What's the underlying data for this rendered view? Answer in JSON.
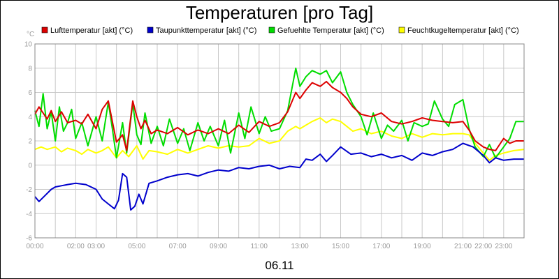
{
  "chart_data": {
    "type": "line",
    "title": "Temperaturen [pro Tag]",
    "date_label": "06.11",
    "y_unit": "°C",
    "ylim": [
      -6,
      10
    ],
    "y_ticks": [
      -6,
      -4,
      -2,
      0,
      2,
      4,
      6,
      8,
      10
    ],
    "xlim": [
      0,
      24
    ],
    "x_ticks": [
      {
        "h": 0,
        "label": "00:00"
      },
      {
        "h": 2,
        "label": "02:00"
      },
      {
        "h": 3,
        "label": "03:00"
      },
      {
        "h": 5,
        "label": "05:00"
      },
      {
        "h": 7,
        "label": "07:00"
      },
      {
        "h": 9,
        "label": "09:00"
      },
      {
        "h": 11,
        "label": "11:00"
      },
      {
        "h": 13,
        "label": "13:00"
      },
      {
        "h": 15,
        "label": "15:00"
      },
      {
        "h": 17,
        "label": "17:00"
      },
      {
        "h": 19,
        "label": "19:00"
      },
      {
        "h": 21,
        "label": "21:00"
      },
      {
        "h": 22,
        "label": "22:00"
      },
      {
        "h": 23,
        "label": "23:00"
      }
    ],
    "grid": true,
    "legend_position": "top",
    "series": [
      {
        "name": "Lufttemperatur [akt] (°C)",
        "color": "#dd0000",
        "x": [
          0,
          0.2,
          0.4,
          0.6,
          0.8,
          1,
          1.3,
          1.6,
          2,
          2.3,
          2.6,
          3,
          3.3,
          3.6,
          3.8,
          4,
          4.3,
          4.5,
          4.8,
          5,
          5.2,
          5.4,
          5.7,
          6,
          6.5,
          7,
          7.5,
          8,
          8.5,
          9,
          9.5,
          10,
          10.5,
          11,
          11.5,
          12,
          12.4,
          12.8,
          13,
          13.3,
          13.6,
          14,
          14.3,
          14.6,
          15,
          15.3,
          15.6,
          16,
          16.5,
          17,
          17.5,
          18,
          18.5,
          19,
          19.5,
          20,
          20.5,
          21,
          21.3,
          21.6,
          22,
          22.3,
          22.6,
          23,
          23.3,
          23.6,
          24
        ],
        "y": [
          4.2,
          4.8,
          4.3,
          3.8,
          4.5,
          3.6,
          4.4,
          3.5,
          3.7,
          3.4,
          4.2,
          3.0,
          4.6,
          5.3,
          3.6,
          1.9,
          2.5,
          1.2,
          5.3,
          4.0,
          3.0,
          3.7,
          2.6,
          2.9,
          2.6,
          3.1,
          2.5,
          2.9,
          2.6,
          3.0,
          2.6,
          3.3,
          2.7,
          3.6,
          3.2,
          3.5,
          4.4,
          6.0,
          5.5,
          6.2,
          6.8,
          6.5,
          6.9,
          6.4,
          6.0,
          5.5,
          4.8,
          4.2,
          4.0,
          4.3,
          3.6,
          3.4,
          3.6,
          3.9,
          3.7,
          3.6,
          3.5,
          3.6,
          2.9,
          2.0,
          1.5,
          1.3,
          1.2,
          2.2,
          1.8,
          2.0,
          2.0
        ]
      },
      {
        "name": "Taupunkttemperatur [akt] (°C)",
        "color": "#0000cc",
        "x": [
          0,
          0.2,
          0.5,
          0.8,
          1,
          1.3,
          1.6,
          2,
          2.5,
          3,
          3.3,
          3.6,
          3.9,
          4.1,
          4.3,
          4.5,
          4.7,
          4.9,
          5.1,
          5.3,
          5.6,
          6,
          6.5,
          7,
          7.5,
          8,
          8.5,
          9,
          9.5,
          10,
          10.5,
          11,
          11.5,
          12,
          12.5,
          13,
          13.3,
          13.6,
          14,
          14.3,
          14.6,
          15,
          15.5,
          16,
          16.5,
          17,
          17.5,
          18,
          18.5,
          19,
          19.5,
          20,
          20.5,
          21,
          21.5,
          22,
          22.3,
          22.6,
          23,
          23.5,
          24
        ],
        "y": [
          -2.6,
          -3.0,
          -2.5,
          -2.0,
          -1.8,
          -1.7,
          -1.6,
          -1.5,
          -1.6,
          -2.0,
          -2.8,
          -3.2,
          -3.6,
          -2.9,
          -0.7,
          -1.0,
          -3.7,
          -3.4,
          -2.4,
          -3.2,
          -1.5,
          -1.3,
          -1.0,
          -0.8,
          -0.7,
          -0.9,
          -0.6,
          -0.4,
          -0.5,
          -0.2,
          -0.3,
          -0.1,
          0.0,
          -0.3,
          -0.1,
          -0.2,
          0.5,
          0.4,
          0.9,
          0.3,
          0.8,
          1.5,
          0.9,
          1.0,
          0.7,
          0.9,
          0.6,
          0.8,
          0.4,
          1.0,
          0.8,
          1.1,
          1.3,
          1.8,
          1.5,
          0.8,
          0.2,
          0.6,
          0.4,
          0.5,
          0.5
        ]
      },
      {
        "name": "Gefuehlte Temperatur [akt] (°C)",
        "color": "#00dd00",
        "x": [
          0,
          0.2,
          0.4,
          0.6,
          0.8,
          1,
          1.2,
          1.4,
          1.6,
          1.8,
          2,
          2.3,
          2.6,
          3,
          3.3,
          3.6,
          3.8,
          4,
          4.3,
          4.5,
          4.8,
          5,
          5.2,
          5.4,
          5.7,
          6,
          6.3,
          6.6,
          7,
          7.3,
          7.6,
          8,
          8.3,
          8.6,
          9,
          9.3,
          9.6,
          10,
          10.3,
          10.6,
          11,
          11.3,
          11.6,
          12,
          12.4,
          12.8,
          13,
          13.3,
          13.6,
          14,
          14.3,
          14.6,
          15,
          15.3,
          15.6,
          16,
          16.3,
          16.6,
          17,
          17.3,
          17.6,
          18,
          18.3,
          18.6,
          19,
          19.3,
          19.6,
          20,
          20.3,
          20.6,
          21,
          21.3,
          21.6,
          22,
          22.3,
          22.6,
          23,
          23.3,
          23.6,
          24
        ],
        "y": [
          4.5,
          3.2,
          5.9,
          3.0,
          4.4,
          2.0,
          4.8,
          2.8,
          3.5,
          4.6,
          2.2,
          3.5,
          1.6,
          4.0,
          2.0,
          5.2,
          3.0,
          0.6,
          3.5,
          1.0,
          5.1,
          2.5,
          1.7,
          4.3,
          1.8,
          3.2,
          1.6,
          3.8,
          1.8,
          3.0,
          1.2,
          3.5,
          2.0,
          3.2,
          1.6,
          3.7,
          1.0,
          4.3,
          2.2,
          4.8,
          2.6,
          4.0,
          2.8,
          3.0,
          4.5,
          8.0,
          6.5,
          7.3,
          7.8,
          7.5,
          7.8,
          6.8,
          7.7,
          6.0,
          5.0,
          4.0,
          2.5,
          4.3,
          2.2,
          3.3,
          2.8,
          3.7,
          2.0,
          3.5,
          3.2,
          3.4,
          5.3,
          3.8,
          3.2,
          5.0,
          5.4,
          3.0,
          1.5,
          0.7,
          1.7,
          0.6,
          1.5,
          2.2,
          3.6,
          3.6
        ]
      },
      {
        "name": "Feuchtkugeltemperatur [akt] (°C)",
        "color": "#ffff00",
        "x": [
          0,
          0.3,
          0.6,
          1,
          1.3,
          1.6,
          2,
          2.3,
          2.6,
          3,
          3.3,
          3.6,
          4,
          4.3,
          4.6,
          5,
          5.3,
          5.6,
          6,
          6.5,
          7,
          7.5,
          8,
          8.5,
          9,
          9.5,
          10,
          10.5,
          11,
          11.5,
          12,
          12.4,
          12.8,
          13,
          13.3,
          13.6,
          14,
          14.3,
          14.6,
          15,
          15.3,
          15.6,
          16,
          16.5,
          17,
          17.5,
          18,
          18.5,
          19,
          19.5,
          20,
          20.5,
          21,
          21.3,
          21.6,
          22,
          22.3,
          22.6,
          23,
          23.5,
          24
        ],
        "y": [
          1.3,
          1.5,
          1.3,
          1.5,
          1.1,
          1.4,
          1.2,
          0.9,
          1.3,
          1.0,
          1.2,
          1.5,
          0.6,
          1.2,
          0.7,
          1.6,
          0.5,
          1.2,
          1.1,
          0.9,
          1.3,
          1.0,
          1.3,
          1.6,
          1.4,
          1.6,
          1.5,
          1.6,
          2.2,
          1.8,
          2.0,
          2.8,
          3.2,
          3.0,
          3.3,
          3.6,
          3.9,
          3.5,
          3.8,
          3.6,
          3.2,
          2.8,
          3.0,
          2.6,
          2.8,
          2.4,
          2.2,
          2.6,
          2.3,
          2.6,
          2.5,
          2.6,
          2.6,
          2.5,
          1.8,
          1.0,
          0.4,
          0.8,
          1.0,
          1.2,
          1.3
        ]
      }
    ]
  }
}
